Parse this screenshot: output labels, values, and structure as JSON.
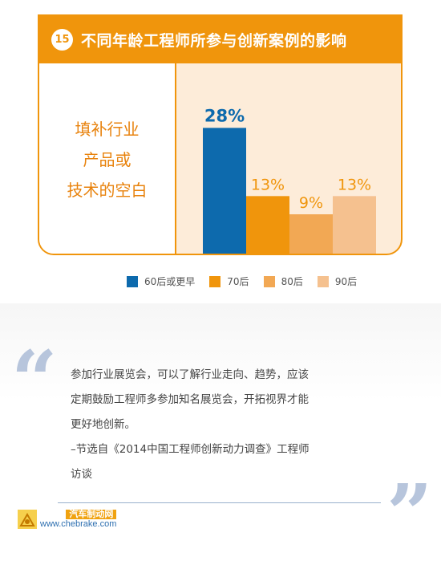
{
  "header": {
    "number": "15",
    "title": "不同年龄工程师所参与创新案例的影响"
  },
  "category_lines": [
    "填补行业",
    "产品或",
    "技术的空白"
  ],
  "chart_data": {
    "type": "bar",
    "title": "不同年龄工程师所参与创新案例的影响",
    "categories": [
      "60后或更早",
      "70后",
      "80后",
      "90后"
    ],
    "values": [
      28,
      13,
      9,
      13
    ],
    "data_labels": [
      "28%",
      "13%",
      "9%",
      "13%"
    ],
    "colors": [
      "#0d6aad",
      "#f0950c",
      "#f2a854",
      "#f5c18f"
    ],
    "label_colors": [
      "#0d6aad",
      "#f0950c",
      "#f0950c",
      "#f0950c"
    ],
    "ylim": [
      0,
      30
    ],
    "grid": false,
    "legend": "bottom"
  },
  "quote": {
    "lines": [
      "参加行业展览会，可以了解行业走向、趋势，应该",
      "定期鼓励工程师多参加知名展览会，开拓视界才能",
      "更好地创新。",
      "–节选自《2014中国工程师创新动力调查》工程师",
      "访谈"
    ]
  },
  "watermark": {
    "name": "汽车制动网",
    "url": "www.chebrake.com"
  }
}
